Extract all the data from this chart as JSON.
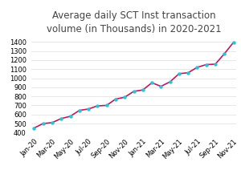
{
  "title": "Average daily SCT Inst transaction\nvolume (in Thousands) in 2020-2021",
  "x_labels": [
    "Jan-20",
    "Mar-20",
    "May-20",
    "Jul-20",
    "Sep-20",
    "Nov-20",
    "Jan-21",
    "Mar-21",
    "May-21",
    "Jul-21",
    "Sep-21",
    "Nov-21"
  ],
  "y_data": [
    450,
    500,
    510,
    555,
    580,
    645,
    660,
    695,
    700,
    770,
    790,
    855,
    870,
    950,
    910,
    960,
    1050,
    1060,
    1120,
    1150,
    1155,
    1270,
    1395
  ],
  "x_tick_positions": [
    0,
    2,
    4,
    6,
    8,
    10,
    12,
    14,
    16,
    18,
    20,
    22
  ],
  "ylim": [
    400,
    1450
  ],
  "yticks": [
    400,
    500,
    600,
    700,
    800,
    900,
    1000,
    1100,
    1200,
    1300,
    1400
  ],
  "line_color": "#C2185B",
  "marker_color": "#26C6DA",
  "marker_size": 3.2,
  "line_width": 1.2,
  "bg_color": "#ffffff",
  "grid_color": "#dddddd",
  "title_fontsize": 8.5,
  "tick_fontsize": 6.0,
  "title_color": "#444444"
}
